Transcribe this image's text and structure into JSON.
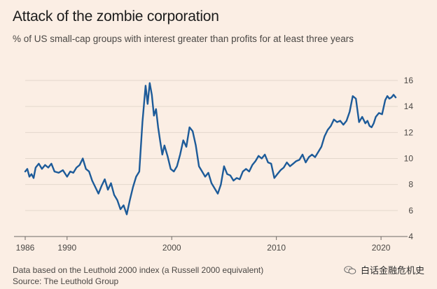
{
  "title": "Attack of the zombie corporation",
  "subtitle": "% of US small-cap groups with interest greater than profits for at least three years",
  "footnote": "Data based on the Leuthold 2000 index (a Russell 2000 equivalent)",
  "source": "Source: The Leuthold Group",
  "watermark": "白话金融危机史",
  "colors": {
    "line": "#1d5b99",
    "grid": "#e3d7cc",
    "axis": "#6f6a66",
    "background": "#fbeee4"
  },
  "chart_data": {
    "type": "line",
    "title": "Attack of the zombie corporation",
    "ylabel": "% of US small-cap groups with interest greater than profits for at least three years",
    "xlabel": "",
    "xlim": [
      1986,
      2021.6
    ],
    "ylim": [
      4,
      16
    ],
    "x_ticks": [
      1986,
      1990,
      2000,
      2010,
      2020
    ],
    "x_tick_labels": [
      "1986",
      "1990",
      "2000",
      "2010",
      "2020"
    ],
    "y_ticks": [
      4,
      6,
      8,
      10,
      12,
      14,
      16
    ],
    "y_tick_labels": [
      "4",
      "6",
      "8",
      "10",
      "12",
      "14",
      "16"
    ],
    "y_axis_side": "right",
    "grid": true,
    "series": [
      {
        "name": "% of US small-cap groups",
        "x": [
          1986.0,
          1986.2,
          1986.4,
          1986.6,
          1986.8,
          1987.0,
          1987.3,
          1987.6,
          1987.9,
          1988.2,
          1988.5,
          1988.8,
          1989.2,
          1989.6,
          1990.0,
          1990.3,
          1990.6,
          1990.9,
          1991.2,
          1991.5,
          1991.8,
          1992.1,
          1992.4,
          1992.7,
          1993.0,
          1993.3,
          1993.6,
          1993.9,
          1994.2,
          1994.5,
          1994.8,
          1995.1,
          1995.4,
          1995.7,
          1996.0,
          1996.3,
          1996.6,
          1996.9,
          1997.2,
          1997.5,
          1997.7,
          1997.9,
          1998.1,
          1998.3,
          1998.5,
          1998.7,
          1998.9,
          1999.1,
          1999.3,
          1999.6,
          1999.9,
          2000.2,
          2000.5,
          2000.8,
          2001.1,
          2001.4,
          2001.7,
          2002.0,
          2002.3,
          2002.6,
          2002.9,
          2003.2,
          2003.5,
          2003.8,
          2004.1,
          2004.4,
          2004.7,
          2005.0,
          2005.3,
          2005.6,
          2005.9,
          2006.2,
          2006.5,
          2006.8,
          2007.1,
          2007.4,
          2007.7,
          2008.0,
          2008.3,
          2008.6,
          2008.9,
          2009.2,
          2009.5,
          2009.8,
          2010.1,
          2010.4,
          2010.7,
          2011.0,
          2011.3,
          2011.6,
          2011.9,
          2012.2,
          2012.5,
          2012.8,
          2013.1,
          2013.4,
          2013.7,
          2014.0,
          2014.3,
          2014.6,
          2014.9,
          2015.2,
          2015.5,
          2015.8,
          2016.1,
          2016.4,
          2016.7,
          2017.0,
          2017.3,
          2017.6,
          2017.9,
          2018.2,
          2018.5,
          2018.7,
          2018.9,
          2019.1,
          2019.3,
          2019.5,
          2019.8,
          2020.1,
          2020.4,
          2020.6,
          2020.8,
          2021.0,
          2021.2,
          2021.4
        ],
        "values": [
          9.0,
          9.2,
          8.6,
          8.8,
          8.5,
          9.3,
          9.6,
          9.2,
          9.5,
          9.3,
          9.6,
          9.0,
          8.9,
          9.1,
          8.6,
          9.0,
          8.9,
          9.3,
          9.5,
          10.0,
          9.2,
          9.0,
          8.3,
          7.8,
          7.3,
          7.9,
          8.4,
          7.6,
          8.1,
          7.2,
          6.8,
          6.1,
          6.4,
          5.7,
          6.8,
          7.8,
          8.6,
          9.0,
          12.8,
          15.6,
          14.2,
          15.8,
          14.9,
          13.3,
          13.8,
          12.4,
          11.3,
          10.3,
          11.0,
          10.2,
          9.2,
          9.0,
          9.4,
          10.3,
          11.4,
          10.9,
          12.4,
          12.1,
          11.0,
          9.4,
          9.0,
          8.6,
          8.9,
          8.1,
          7.7,
          7.3,
          8.0,
          9.4,
          8.8,
          8.7,
          8.3,
          8.5,
          8.4,
          9.0,
          9.2,
          9.0,
          9.5,
          9.8,
          10.2,
          10.0,
          10.3,
          9.7,
          9.6,
          8.5,
          8.8,
          9.1,
          9.3,
          9.7,
          9.4,
          9.6,
          9.8,
          9.9,
          10.3,
          9.7,
          10.1,
          10.3,
          10.1,
          10.5,
          10.9,
          11.7,
          12.2,
          12.5,
          13.0,
          12.8,
          12.9,
          12.6,
          12.9,
          13.6,
          14.8,
          14.6,
          12.8,
          13.2,
          12.7,
          12.9,
          12.5,
          12.4,
          12.7,
          13.2,
          13.5,
          13.4,
          14.5,
          14.8,
          14.6,
          14.7,
          14.9,
          14.7
        ]
      }
    ]
  }
}
